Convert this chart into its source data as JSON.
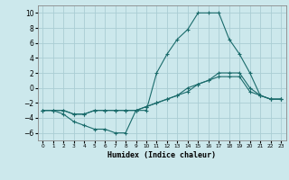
{
  "xlabel": "Humidex (Indice chaleur)",
  "bg_color": "#cce8ec",
  "grid_color": "#aacdd4",
  "line_color": "#1a6b6b",
  "xlim": [
    -0.5,
    23.5
  ],
  "ylim": [
    -7,
    11
  ],
  "xticks": [
    0,
    1,
    2,
    3,
    4,
    5,
    6,
    7,
    8,
    9,
    10,
    11,
    12,
    13,
    14,
    15,
    16,
    17,
    18,
    19,
    20,
    21,
    22,
    23
  ],
  "yticks": [
    -6,
    -4,
    -2,
    0,
    2,
    4,
    6,
    8,
    10
  ],
  "line1_x": [
    0,
    1,
    2,
    3,
    4,
    5,
    6,
    7,
    8,
    9,
    10,
    11,
    12,
    13,
    14,
    15,
    16,
    17,
    18,
    19,
    20,
    21,
    22,
    23
  ],
  "line1_y": [
    -3,
    -3,
    -3.5,
    -4.5,
    -5,
    -5.5,
    -5.5,
    -6,
    -6,
    -3,
    -3,
    2,
    4.5,
    6.5,
    7.8,
    10,
    10,
    10,
    6.5,
    4.5,
    2,
    -1,
    -1.5,
    -1.5
  ],
  "line2_x": [
    0,
    1,
    2,
    3,
    4,
    5,
    6,
    7,
    8,
    9,
    10,
    11,
    12,
    13,
    14,
    15,
    16,
    17,
    18,
    19,
    20,
    21,
    22,
    23
  ],
  "line2_y": [
    -3,
    -3,
    -3,
    -3.5,
    -3.5,
    -3,
    -3,
    -3,
    -3,
    -3,
    -2.5,
    -2,
    -1.5,
    -1,
    -0.5,
    0.5,
    1,
    2,
    2,
    2,
    0,
    -1,
    -1.5,
    -1.5
  ],
  "line3_x": [
    0,
    1,
    2,
    3,
    4,
    5,
    6,
    7,
    8,
    9,
    10,
    11,
    12,
    13,
    14,
    15,
    16,
    17,
    18,
    19,
    20,
    21,
    22,
    23
  ],
  "line3_y": [
    -3,
    -3,
    -3,
    -3.5,
    -3.5,
    -3,
    -3,
    -3,
    -3,
    -3,
    -2.5,
    -2,
    -1.5,
    -1,
    0,
    0.5,
    1,
    1.5,
    1.5,
    1.5,
    -0.5,
    -1,
    -1.5,
    -1.5
  ]
}
